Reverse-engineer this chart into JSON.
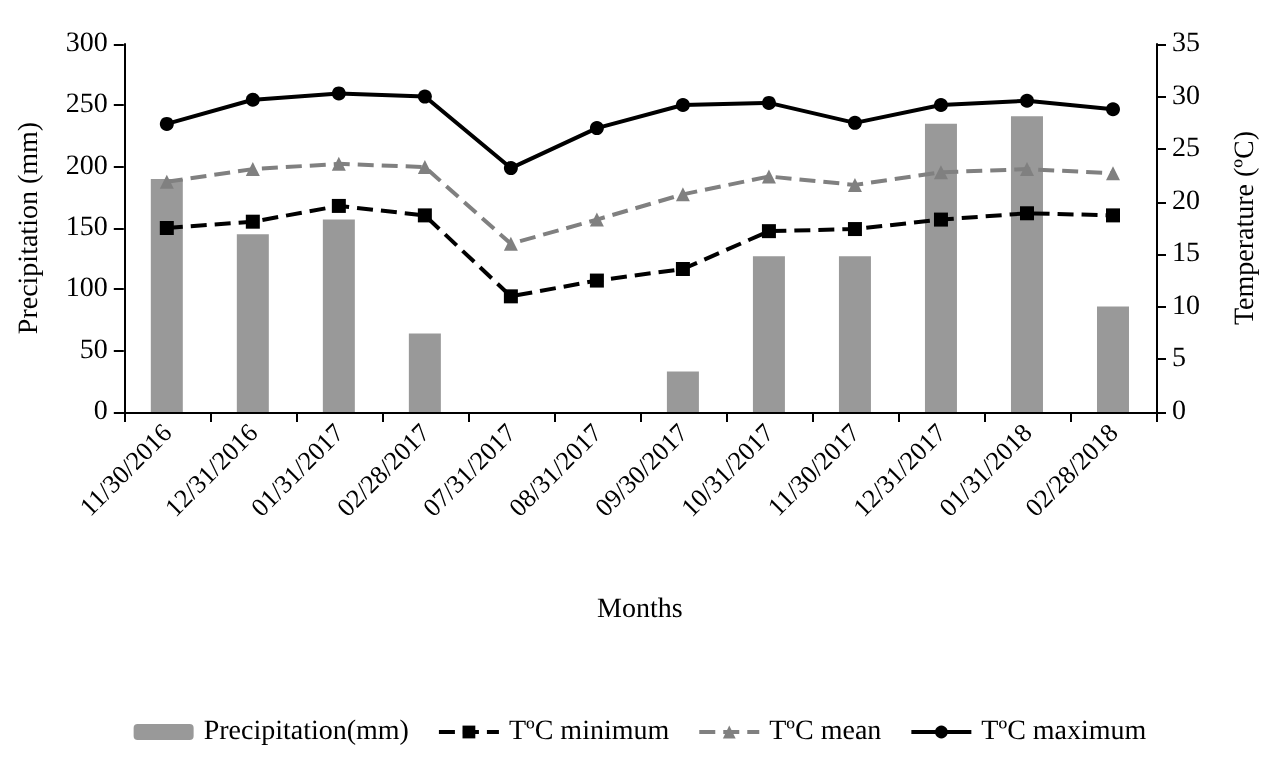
{
  "chart_data": {
    "type": "bar",
    "xlabel": "Months",
    "ylabel": "Precipitation (mm)",
    "y2label": "Temperature (ºC)",
    "categories": [
      "11/30/2016",
      "12/31/2016",
      "01/31/2017",
      "02/28/2017",
      "07/31/2017",
      "08/31/2017",
      "09/30/2017",
      "10/31/2017",
      "11/30/2017",
      "12/31/2017",
      "01/31/2018",
      "02/28/2018"
    ],
    "series": [
      {
        "name": "Precipitation(mm)",
        "color": "#999999",
        "values": [
          190,
          145,
          157,
          64,
          0,
          0,
          33,
          127,
          127,
          235,
          241,
          86
        ]
      },
      {
        "name": "TºC minimum",
        "type": "line",
        "axis": "y2",
        "color": "#000000",
        "marker": "square",
        "line_style": "dashed",
        "values": [
          17.5,
          18.1,
          19.6,
          18.7,
          11.0,
          12.5,
          13.6,
          17.2,
          17.4,
          18.3,
          18.9,
          18.7
        ]
      },
      {
        "name": "TºC mean",
        "type": "line",
        "axis": "y2",
        "color": "#808080",
        "marker": "triangle",
        "line_style": "dashed",
        "values": [
          21.9,
          23.1,
          23.6,
          23.3,
          16.0,
          18.3,
          20.7,
          22.4,
          21.6,
          22.8,
          23.1,
          22.7
        ]
      },
      {
        "name": "TºC maximum",
        "type": "line",
        "axis": "y2",
        "color": "#000000",
        "marker": "circle",
        "line_style": "solid",
        "values": [
          27.4,
          29.7,
          30.3,
          30.0,
          23.2,
          27.0,
          29.2,
          29.4,
          27.5,
          29.2,
          29.6,
          28.8
        ]
      }
    ],
    "ylim": [
      0,
      300
    ],
    "yticks": [
      0,
      50,
      100,
      150,
      200,
      250,
      300
    ],
    "y2lim": [
      0,
      35
    ],
    "y2ticks": [
      0,
      5,
      10,
      15,
      20,
      25,
      30,
      35
    ],
    "grid": false,
    "legend": "bottom"
  }
}
